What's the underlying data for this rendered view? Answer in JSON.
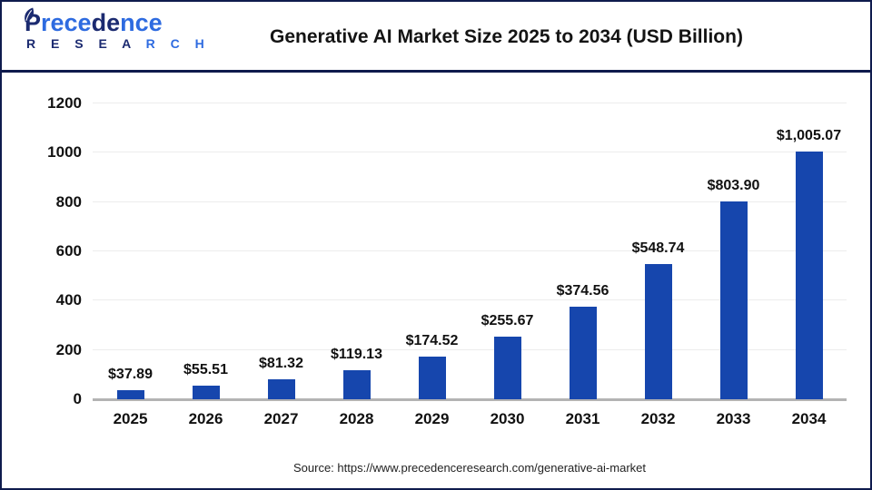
{
  "header": {
    "logo": {
      "brand_segments": [
        {
          "text": "P"
        },
        {
          "text": "rece"
        },
        {
          "text": "de"
        },
        {
          "text": "nce"
        }
      ],
      "sub_segments": [
        {
          "text": "R E S E A "
        },
        {
          "text": "R C H"
        }
      ]
    },
    "title": "Generative AI Market Size 2025 to 2034 (USD Billion)"
  },
  "chart_data": {
    "type": "bar",
    "title": "Generative AI Market Size 2025 to 2034 (USD Billion)",
    "categories": [
      "2025",
      "2026",
      "2027",
      "2028",
      "2029",
      "2030",
      "2031",
      "2032",
      "2033",
      "2034"
    ],
    "values": [
      37.89,
      55.51,
      81.32,
      119.13,
      174.52,
      255.67,
      374.56,
      548.74,
      803.9,
      1005.07
    ],
    "value_labels": [
      "$37.89",
      "$55.51",
      "$81.32",
      "$119.13",
      "$174.52",
      "$255.67",
      "$374.56",
      "$548.74",
      "$803.90",
      "$1,005.07"
    ],
    "unit": "USD Billion",
    "xlabel": "",
    "ylabel": "",
    "ylim": [
      0,
      1200
    ],
    "yticks": [
      0,
      200,
      400,
      600,
      800,
      1000,
      1200
    ],
    "grid": true,
    "legend": false,
    "bar_color": "#1646ad"
  },
  "footer": {
    "source": "Source: https://www.precedenceresearch.com/generative-ai-market"
  },
  "colors": {
    "frame_border": "#0f1b4d",
    "bar": "#1646ad",
    "gridline": "#ececec",
    "axis_baseline": "#b3b3b3",
    "logo_navy": "#1b2a70",
    "logo_blue": "#2e6be0",
    "text": "#111111"
  }
}
